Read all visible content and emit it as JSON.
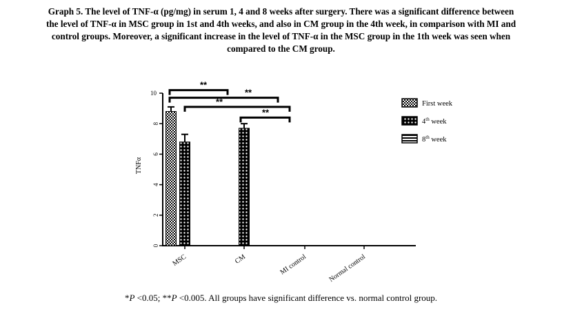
{
  "caption": {
    "line1": "Graph 5. The level of TNF-α (pg/mg) in serum 1, 4 and 8 weeks after surgery. There was a significant difference between",
    "line2": "the level of TNF-α in MSC group in 1st and 4th weeks, and also in CM group in the 4th week, in comparison with MI and",
    "line3": "control groups. Moreover, a significant increase in the level of TNF-α in the MSC group in the 1th week was seen when",
    "line4": "compared to the CM group."
  },
  "footnote": {
    "prefix": "*",
    "p1": "P",
    "mid": " <0.05; **",
    "p2": "P",
    "rest": " <0.005. All groups have significant difference vs. normal control group."
  },
  "chart_data": {
    "type": "bar",
    "ylabel": "TNFα",
    "ylim": [
      0,
      10
    ],
    "yticks": [
      "0",
      "2",
      "4",
      "6",
      "8",
      "10"
    ],
    "categories": [
      "MSC",
      "CM",
      "MI control",
      "Normal control"
    ],
    "series": [
      {
        "name": "First week",
        "values": [
          8.8,
          null,
          null,
          null
        ],
        "errors": [
          0.3,
          null,
          null,
          null
        ]
      },
      {
        "name": "4th week",
        "values": [
          6.8,
          7.7,
          null,
          null
        ],
        "errors": [
          0.5,
          0.3,
          null,
          null
        ]
      },
      {
        "name": "8th week",
        "values": [
          null,
          null,
          null,
          null
        ],
        "errors": [
          null,
          null,
          null,
          null
        ]
      }
    ],
    "legend": {
      "position": "right",
      "items": [
        {
          "label": "First week",
          "sup": ""
        },
        {
          "label": "4",
          "sup": "th",
          "rest": " week"
        },
        {
          "label": "8",
          "sup": "th",
          "rest": " week"
        }
      ]
    },
    "significance": [
      {
        "label": "**",
        "from": "MSC",
        "to": "MI control",
        "level": 10.2
      },
      {
        "label": "**",
        "from": "MSC",
        "to": "CM",
        "level": 9.7
      },
      {
        "label": "**",
        "from": "MSC",
        "to": "Normal control",
        "level": 9.1
      },
      {
        "label": "**",
        "from": "CM",
        "to": "Normal control",
        "level": 8.4
      }
    ],
    "colors": {
      "bar": "#000000",
      "pattern": "#ffffff"
    }
  }
}
